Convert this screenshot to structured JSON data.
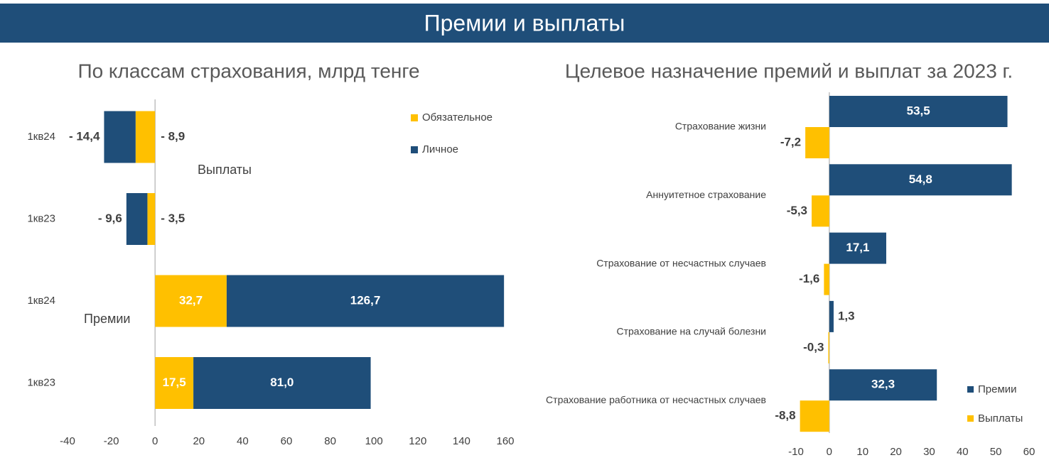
{
  "header": {
    "title": "Премии и выплаты"
  },
  "chart_data": [
    {
      "type": "bar",
      "orientation": "horizontal",
      "stacked": true,
      "title": "По классам страхования, млрд тенге",
      "categories": [
        "1кв24",
        "1кв23",
        "1кв24",
        "1кв23"
      ],
      "series": [
        {
          "name": "Обязательное",
          "color": "#ffc000",
          "values": [
            -8.9,
            -3.5,
            32.7,
            17.5
          ],
          "value_labels": [
            "- 8,9",
            "- 3,5",
            "32,7",
            "17,5"
          ]
        },
        {
          "name": "Личное",
          "color": "#1f4e79",
          "values": [
            -14.4,
            -9.6,
            126.7,
            81.0
          ],
          "value_labels": [
            "- 14,4",
            "- 9,6",
            "126,7",
            "81,0"
          ]
        }
      ],
      "annotations": [
        "Выплаты",
        "Премии"
      ],
      "xlim": [
        -40,
        160
      ],
      "xticks": [
        -40,
        -20,
        0,
        20,
        40,
        60,
        80,
        100,
        120,
        140,
        160
      ]
    },
    {
      "type": "bar",
      "orientation": "horizontal",
      "stacked": false,
      "title": "Целевое назначение премий и выплат за 2023 г.",
      "categories": [
        "Страхование жизни",
        "Аннуитетное страхование",
        "Страхование от несчастных случаев",
        "Страхование на случай болезни",
        "Страхование работника от несчастных случаев"
      ],
      "series": [
        {
          "name": "Премии",
          "color": "#1f4e79",
          "values": [
            53.5,
            54.8,
            17.1,
            1.3,
            32.3
          ],
          "value_labels": [
            "53,5",
            "54,8",
            "17,1",
            "1,3",
            "32,3"
          ]
        },
        {
          "name": "Выплаты",
          "color": "#ffc000",
          "values": [
            -7.2,
            -5.3,
            -1.6,
            -0.3,
            -8.8
          ],
          "value_labels": [
            "-7,2",
            "-5,3",
            "-1,6",
            "-0,3",
            "-8,8"
          ]
        }
      ],
      "xlim": [
        -10,
        60
      ],
      "xticks": [
        -10,
        0,
        10,
        20,
        30,
        40,
        50,
        60
      ]
    }
  ]
}
